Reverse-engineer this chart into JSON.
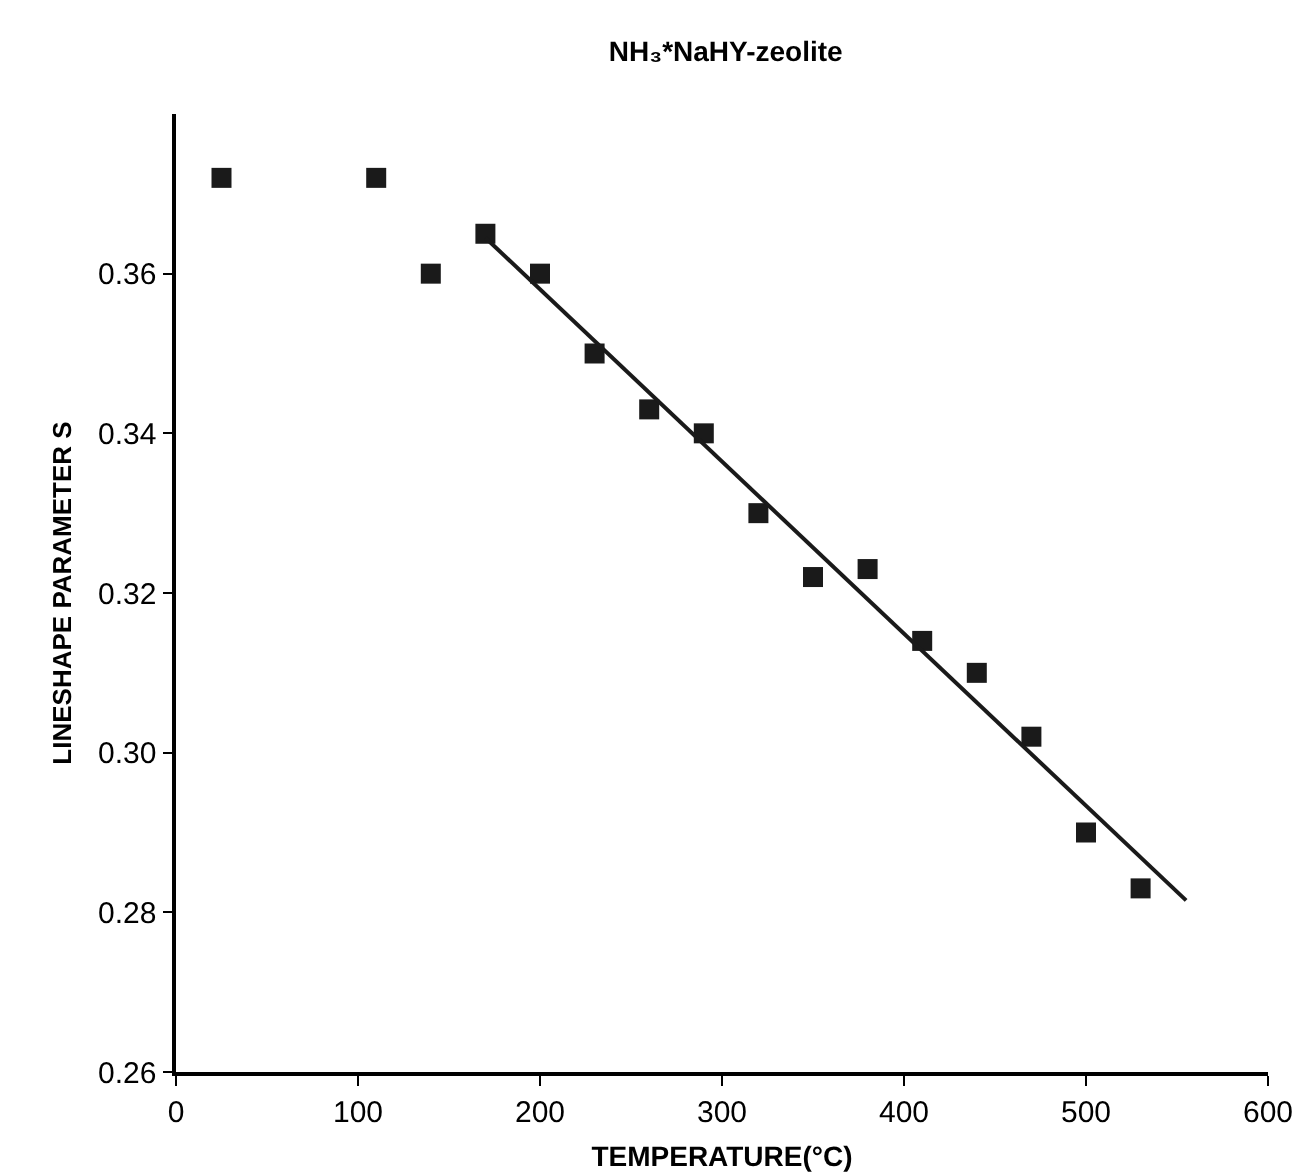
{
  "chart_data": {
    "type": "scatter",
    "title": "NH₃*NaHY-zeolite",
    "xlabel": "TEMPERATURE(°C)",
    "ylabel": "LINESHAPE PARAMETER S",
    "x": [
      25,
      110,
      140,
      170,
      200,
      230,
      260,
      290,
      320,
      350,
      380,
      410,
      440,
      470,
      500,
      530
    ],
    "series": [
      {
        "color": "#1a1a1a",
        "marker": "square",
        "values": [
          0.372,
          0.372,
          0.36,
          0.365,
          0.36,
          0.35,
          0.343,
          0.34,
          0.33,
          0.322,
          0.323,
          0.314,
          0.31,
          0.302,
          0.29,
          0.283
        ]
      },
      {
        "type": "line",
        "color": "#1a1a1a",
        "x": [
          170,
          555
        ],
        "values": [
          0.3645,
          0.2815
        ]
      }
    ],
    "xlim": [
      0,
      600
    ],
    "xticks": [
      0,
      100,
      200,
      300,
      400,
      500,
      600
    ],
    "ylim": [
      0.26,
      0.38
    ],
    "yticks": [
      {
        "value": 0.26,
        "label": "0.26"
      },
      {
        "value": 0.28,
        "label": "0.28"
      },
      {
        "value": 0.3,
        "label": "0.30"
      },
      {
        "value": 0.32,
        "label": "0.32"
      },
      {
        "value": 0.34,
        "label": "0.34"
      },
      {
        "value": 0.36,
        "label": "0.36"
      }
    ],
    "grid": false
  }
}
